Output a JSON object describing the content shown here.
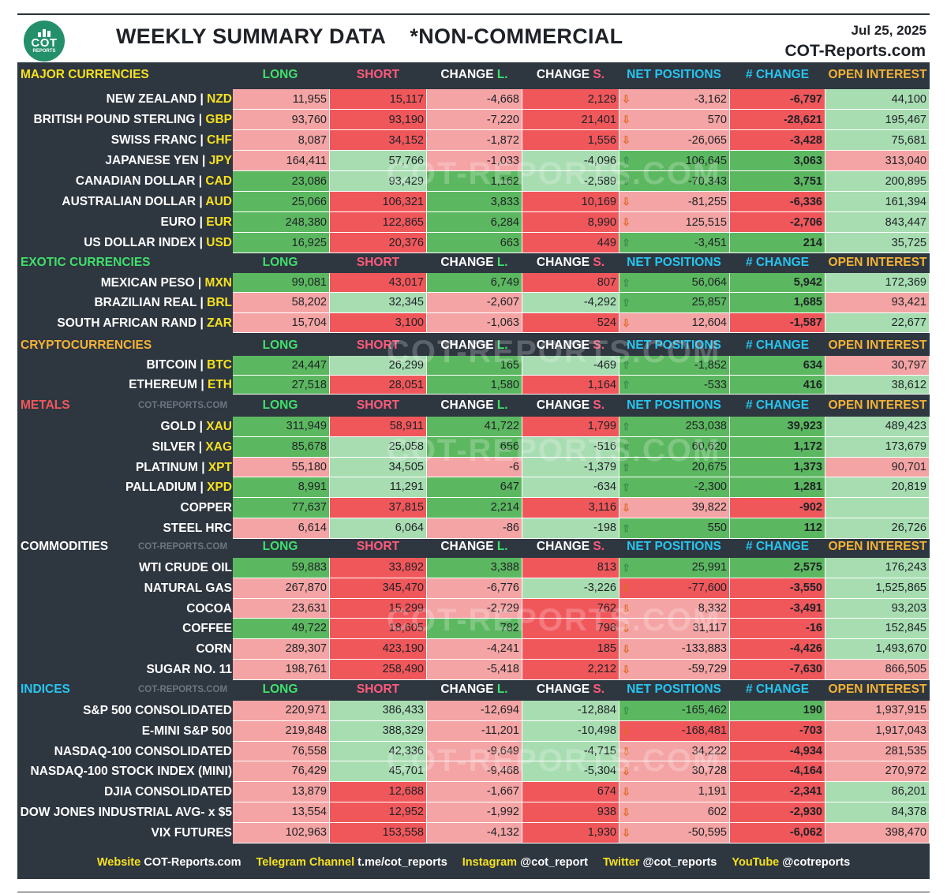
{
  "header": {
    "logo_big": "COT",
    "logo_small": "REPORTS",
    "title": "WEEKLY SUMMARY DATA    *NON-COMMERCIAL",
    "date": "Jul 25, 2025",
    "site": "COT-Reports.com"
  },
  "colors": {
    "long_header": "#3fe06a",
    "short_header": "#ff5a7a",
    "net_header": "#26c6f0",
    "oi_header": "#f5b335",
    "ticker": "#f5e11e",
    "dark_bg": "#2e3640",
    "light_green": "#a8ddb2",
    "green": "#5cb860",
    "light_red": "#f4a4a4",
    "red": "#f0575b"
  },
  "watermark_text": "COT-REPORTS.COM",
  "watermark_small": "COT-REPORTS.COM",
  "columns": {
    "long": "LONG",
    "short": "SHORT",
    "change_l": "CHANGE L.",
    "change_s": "CHANGE S.",
    "net": "NET POSITIONS",
    "num_change": "# CHANGE",
    "oi": "OPEN INTEREST"
  },
  "sections": [
    {
      "name": "MAJOR CURRENCIES",
      "color": "#f5e11e",
      "watermark": false,
      "rows": [
        {
          "name": "NEW ZEALAND | ",
          "ticker": "NZD",
          "long": "11,955",
          "short": "15,117",
          "chl": "-4,668",
          "chs": "2,129",
          "dir": "down",
          "net": "-3,162",
          "num": "-6,797",
          "oi": "44,100",
          "c": [
            "lr",
            "r",
            "lr",
            "r",
            "lr",
            "r",
            "lg"
          ]
        },
        {
          "name": "BRITISH POUND STERLING | ",
          "ticker": "GBP",
          "long": "93,760",
          "short": "93,190",
          "chl": "-7,220",
          "chs": "21,401",
          "dir": "down",
          "net": "570",
          "num": "-28,621",
          "oi": "195,467",
          "c": [
            "lr",
            "r",
            "lr",
            "r",
            "lr",
            "r",
            "lg"
          ]
        },
        {
          "name": "SWISS FRANC | ",
          "ticker": "CHF",
          "long": "8,087",
          "short": "34,152",
          "chl": "-1,872",
          "chs": "1,556",
          "dir": "down",
          "net": "-26,065",
          "num": "-3,428",
          "oi": "75,681",
          "c": [
            "lr",
            "r",
            "lr",
            "r",
            "lr",
            "r",
            "lg"
          ]
        },
        {
          "name": "JAPANESE YEN | ",
          "ticker": "JPY",
          "long": "164,411",
          "short": "57,766",
          "chl": "-1,033",
          "chs": "-4,096",
          "dir": "up",
          "net": "106,645",
          "num": "3,063",
          "oi": "313,040",
          "c": [
            "lr",
            "lg",
            "lr",
            "lg",
            "g",
            "g",
            "lr"
          ]
        },
        {
          "name": "CANADIAN DOLLAR | ",
          "ticker": "CAD",
          "long": "23,086",
          "short": "93,429",
          "chl": "1,162",
          "chs": "-2,589",
          "dir": "up",
          "net": "-70,343",
          "num": "3,751",
          "oi": "200,895",
          "c": [
            "g",
            "lg",
            "g",
            "lg",
            "g",
            "g",
            "lg"
          ]
        },
        {
          "name": "AUSTRALIAN DOLLAR | ",
          "ticker": "AUD",
          "long": "25,066",
          "short": "106,321",
          "chl": "3,833",
          "chs": "10,169",
          "dir": "down",
          "net": "-81,255",
          "num": "-6,336",
          "oi": "161,394",
          "c": [
            "g",
            "r",
            "g",
            "r",
            "lr",
            "r",
            "lg"
          ]
        },
        {
          "name": "EURO | ",
          "ticker": "EUR",
          "long": "248,380",
          "short": "122,865",
          "chl": "6,284",
          "chs": "8,990",
          "dir": "down",
          "net": "125,515",
          "num": "-2,706",
          "oi": "843,447",
          "c": [
            "g",
            "r",
            "g",
            "r",
            "lr",
            "r",
            "lg"
          ]
        },
        {
          "name": "US DOLLAR INDEX | ",
          "ticker": "USD",
          "long": "16,925",
          "short": "20,376",
          "chl": "663",
          "chs": "449",
          "dir": "up",
          "net": "-3,451",
          "num": "214",
          "oi": "35,725",
          "c": [
            "g",
            "r",
            "g",
            "r",
            "g",
            "g",
            "lg"
          ]
        }
      ]
    },
    {
      "name": "EXOTIC CURRENCIES",
      "color": "#3fe06a",
      "watermark": false,
      "rows": [
        {
          "name": "MEXICAN PESO | ",
          "ticker": "MXN",
          "long": "99,081",
          "short": "43,017",
          "chl": "6,749",
          "chs": "807",
          "dir": "up",
          "net": "56,064",
          "num": "5,942",
          "oi": "172,369",
          "c": [
            "g",
            "r",
            "g",
            "r",
            "g",
            "g",
            "lg"
          ]
        },
        {
          "name": "BRAZILIAN REAL | ",
          "ticker": "BRL",
          "long": "58,202",
          "short": "32,345",
          "chl": "-2,607",
          "chs": "-4,292",
          "dir": "up",
          "net": "25,857",
          "num": "1,685",
          "oi": "93,421",
          "c": [
            "lr",
            "lg",
            "lr",
            "lg",
            "g",
            "g",
            "lr"
          ]
        },
        {
          "name": "SOUTH AFRICAN RAND | ",
          "ticker": "ZAR",
          "long": "15,704",
          "short": "3,100",
          "chl": "-1,063",
          "chs": "524",
          "dir": "down",
          "net": "12,604",
          "num": "-1,587",
          "oi": "22,677",
          "c": [
            "lr",
            "r",
            "lr",
            "r",
            "lr",
            "r",
            "lg"
          ]
        }
      ]
    },
    {
      "name": "CRYPTOCURRENCIES",
      "color": "#f5b335",
      "watermark": false,
      "rows": [
        {
          "name": "BITCOIN | ",
          "ticker": "BTC",
          "long": "24,447",
          "short": "26,299",
          "chl": "165",
          "chs": "-469",
          "dir": "up",
          "net": "-1,852",
          "num": "634",
          "oi": "30,797",
          "c": [
            "g",
            "lg",
            "g",
            "lg",
            "g",
            "g",
            "lr"
          ]
        },
        {
          "name": "ETHEREUM | ",
          "ticker": "ETH",
          "long": "27,518",
          "short": "28,051",
          "chl": "1,580",
          "chs": "1,164",
          "dir": "up",
          "net": "-533",
          "num": "416",
          "oi": "38,612",
          "c": [
            "g",
            "r",
            "g",
            "r",
            "g",
            "g",
            "lg"
          ]
        }
      ]
    },
    {
      "name": "METALS",
      "color": "#f0575b",
      "watermark": true,
      "rows": [
        {
          "name": "GOLD | ",
          "ticker": "XAU",
          "long": "311,949",
          "short": "58,911",
          "chl": "41,722",
          "chs": "1,799",
          "dir": "up",
          "net": "253,038",
          "num": "39,923",
          "oi": "489,423",
          "c": [
            "g",
            "r",
            "g",
            "r",
            "g",
            "g",
            "lg"
          ]
        },
        {
          "name": "SILVER | ",
          "ticker": "XAG",
          "long": "85,678",
          "short": "25,058",
          "chl": "656",
          "chs": "-516",
          "dir": "up",
          "net": "60,620",
          "num": "1,172",
          "oi": "173,679",
          "c": [
            "g",
            "lg",
            "g",
            "lg",
            "g",
            "g",
            "lg"
          ]
        },
        {
          "name": "PLATINUM | ",
          "ticker": "XPT",
          "long": "55,180",
          "short": "34,505",
          "chl": "-6",
          "chs": "-1,379",
          "dir": "up",
          "net": "20,675",
          "num": "1,373",
          "oi": "90,701",
          "c": [
            "lr",
            "lg",
            "lr",
            "lg",
            "g",
            "g",
            "lr"
          ]
        },
        {
          "name": "PALLADIUM | ",
          "ticker": "XPD",
          "long": "8,991",
          "short": "11,291",
          "chl": "647",
          "chs": "-634",
          "dir": "up",
          "net": "-2,300",
          "num": "1,281",
          "oi": "20,819",
          "c": [
            "g",
            "lg",
            "g",
            "lg",
            "g",
            "g",
            "lg"
          ]
        },
        {
          "name": "COPPER",
          "ticker": "",
          "long": "77,637",
          "short": "37,815",
          "chl": "2,214",
          "chs": "3,116",
          "dir": "down",
          "net": "39,822",
          "num": "-902",
          "oi": "",
          "c": [
            "g",
            "r",
            "g",
            "r",
            "lr",
            "r",
            "lg"
          ]
        },
        {
          "name": "STEEL HRC",
          "ticker": "",
          "long": "6,614",
          "short": "6,064",
          "chl": "-86",
          "chs": "-198",
          "dir": "up",
          "net": "550",
          "num": "112",
          "oi": "26,726",
          "c": [
            "lr",
            "lg",
            "lr",
            "lg",
            "g",
            "g",
            "lg"
          ]
        }
      ]
    },
    {
      "name": "COMMODITIES",
      "color": "#ffffff",
      "watermark": true,
      "rows": [
        {
          "name": "WTI CRUDE OIL",
          "ticker": "",
          "long": "59,883",
          "short": "33,892",
          "chl": "3,388",
          "chs": "813",
          "dir": "up",
          "net": "25,991",
          "num": "2,575",
          "oi": "176,243",
          "c": [
            "g",
            "r",
            "g",
            "r",
            "g",
            "g",
            "lg"
          ]
        },
        {
          "name": "NATURAL GAS",
          "ticker": "",
          "long": "267,870",
          "short": "345,470",
          "chl": "-6,776",
          "chs": "-3,226",
          "dir": "down",
          "net": "-77,600",
          "num": "-3,550",
          "oi": "1,525,865",
          "c": [
            "lr",
            "r",
            "lr",
            "lg",
            "r",
            "r",
            "lg"
          ]
        },
        {
          "name": "COCOA",
          "ticker": "",
          "long": "23,631",
          "short": "15,299",
          "chl": "-2,729",
          "chs": "762",
          "dir": "down",
          "net": "8,332",
          "num": "-3,491",
          "oi": "93,203",
          "c": [
            "lr",
            "r",
            "lr",
            "r",
            "lr",
            "r",
            "lg"
          ]
        },
        {
          "name": "COFFEE",
          "ticker": "",
          "long": "49,722",
          "short": "18,605",
          "chl": "782",
          "chs": "798",
          "dir": "down",
          "net": "31,117",
          "num": "-16",
          "oi": "152,845",
          "c": [
            "g",
            "r",
            "g",
            "r",
            "lr",
            "r",
            "lg"
          ]
        },
        {
          "name": "CORN",
          "ticker": "",
          "long": "289,307",
          "short": "423,190",
          "chl": "-4,241",
          "chs": "185",
          "dir": "down",
          "net": "-133,883",
          "num": "-4,426",
          "oi": "1,493,670",
          "c": [
            "lr",
            "r",
            "lr",
            "r",
            "lr",
            "r",
            "lg"
          ]
        },
        {
          "name": "SUGAR NO. 11",
          "ticker": "",
          "long": "198,761",
          "short": "258,490",
          "chl": "-5,418",
          "chs": "2,212",
          "dir": "down",
          "net": "-59,729",
          "num": "-7,630",
          "oi": "866,505",
          "c": [
            "lr",
            "r",
            "lr",
            "r",
            "lr",
            "r",
            "lr"
          ]
        }
      ]
    },
    {
      "name": "INDICES",
      "color": "#26c6f0",
      "watermark": true,
      "rows": [
        {
          "name": "S&P 500 CONSOLIDATED",
          "ticker": "",
          "long": "220,971",
          "short": "386,433",
          "chl": "-12,694",
          "chs": "-12,884",
          "dir": "up",
          "net": "-165,462",
          "num": "190",
          "oi": "1,937,915",
          "c": [
            "lr",
            "lg",
            "lr",
            "lg",
            "g",
            "g",
            "lr"
          ]
        },
        {
          "name": "E-MINI S&P 500",
          "ticker": "",
          "long": "219,848",
          "short": "388,329",
          "chl": "-11,201",
          "chs": "-10,498",
          "dir": "down",
          "net": "-168,481",
          "num": "-703",
          "oi": "1,917,043",
          "c": [
            "lr",
            "lg",
            "lr",
            "lg",
            "r",
            "r",
            "lr"
          ]
        },
        {
          "name": "NASDAQ-100 CONSOLIDATED",
          "ticker": "",
          "long": "76,558",
          "short": "42,336",
          "chl": "-9,649",
          "chs": "-4,715",
          "dir": "down",
          "net": "34,222",
          "num": "-4,934",
          "oi": "281,535",
          "c": [
            "lr",
            "lg",
            "lr",
            "lg",
            "lr",
            "r",
            "lr"
          ]
        },
        {
          "name": "NASDAQ-100 STOCK INDEX (MINI)",
          "ticker": "",
          "long": "76,429",
          "short": "45,701",
          "chl": "-9,468",
          "chs": "-5,304",
          "dir": "down",
          "net": "30,728",
          "num": "-4,164",
          "oi": "270,972",
          "c": [
            "lr",
            "lg",
            "lr",
            "lg",
            "lr",
            "r",
            "lr"
          ]
        },
        {
          "name": "DJIA CONSOLIDATED",
          "ticker": "",
          "long": "13,879",
          "short": "12,688",
          "chl": "-1,667",
          "chs": "674",
          "dir": "down",
          "net": "1,191",
          "num": "-2,341",
          "oi": "86,201",
          "c": [
            "lr",
            "r",
            "lr",
            "r",
            "lr",
            "r",
            "lg"
          ]
        },
        {
          "name": "DOW JONES INDUSTRIAL AVG- x $5",
          "ticker": "",
          "long": "13,554",
          "short": "12,952",
          "chl": "-1,992",
          "chs": "938",
          "dir": "down",
          "net": "602",
          "num": "-2,930",
          "oi": "84,378",
          "c": [
            "lr",
            "r",
            "lr",
            "r",
            "lr",
            "r",
            "lg"
          ]
        },
        {
          "name": "VIX FUTURES",
          "ticker": "",
          "long": "102,963",
          "short": "153,558",
          "chl": "-4,132",
          "chs": "1,930",
          "dir": "down",
          "net": "-50,595",
          "num": "-6,062",
          "oi": "398,470",
          "c": [
            "lr",
            "r",
            "lr",
            "r",
            "lr",
            "r",
            "lr"
          ]
        }
      ]
    }
  ],
  "footer": [
    {
      "label": "Website",
      "value": "COT-Reports.com"
    },
    {
      "label": "Telegram Channel",
      "value": "t.me/cot_reports"
    },
    {
      "label": "Instagram",
      "value": "@cot_report"
    },
    {
      "label": "Twitter",
      "value": "@cot_reports"
    },
    {
      "label": "YouTube",
      "value": "@cotreports"
    }
  ]
}
